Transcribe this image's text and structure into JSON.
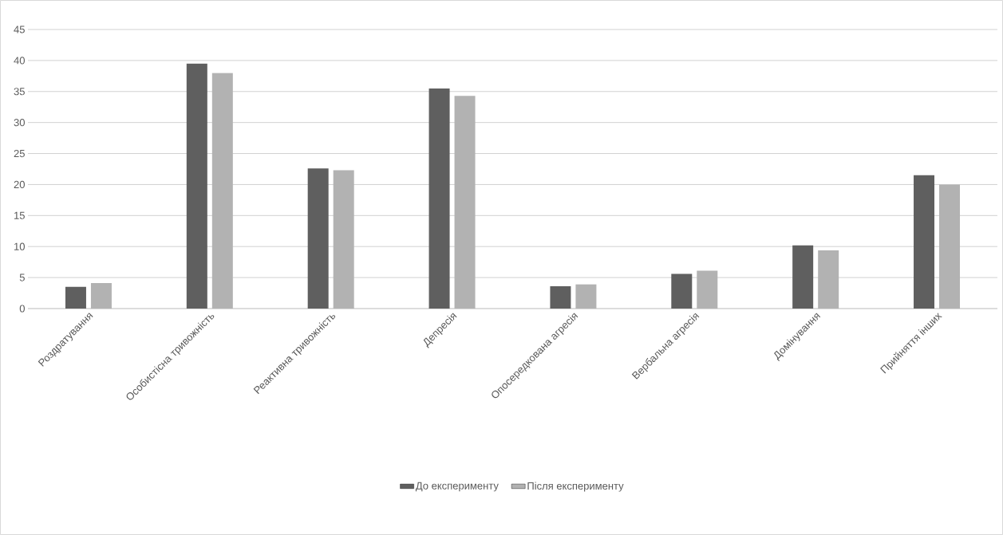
{
  "chart_data": {
    "type": "bar",
    "categories": [
      "Роздратування",
      "Особистісна тривожність",
      "Реактивна тривожність",
      "Депресія",
      "Опосередкована агресія",
      "Вербальна агресія",
      "Домінування",
      "Прийняття інших"
    ],
    "series": [
      {
        "name": "До експерименту",
        "color": "#5f5f5f",
        "values": [
          3.5,
          39.5,
          22.6,
          35.5,
          3.6,
          5.6,
          10.2,
          21.5
        ]
      },
      {
        "name": "Після експерименту",
        "color": "#b2b2b2",
        "values": [
          4.1,
          38.0,
          22.3,
          34.3,
          3.9,
          6.1,
          9.4,
          20.0
        ]
      }
    ],
    "ylim": [
      0,
      45
    ],
    "yticks": [
      0,
      5,
      10,
      15,
      20,
      25,
      30,
      35,
      40,
      45
    ],
    "grid": "y",
    "legend": "bottom"
  }
}
